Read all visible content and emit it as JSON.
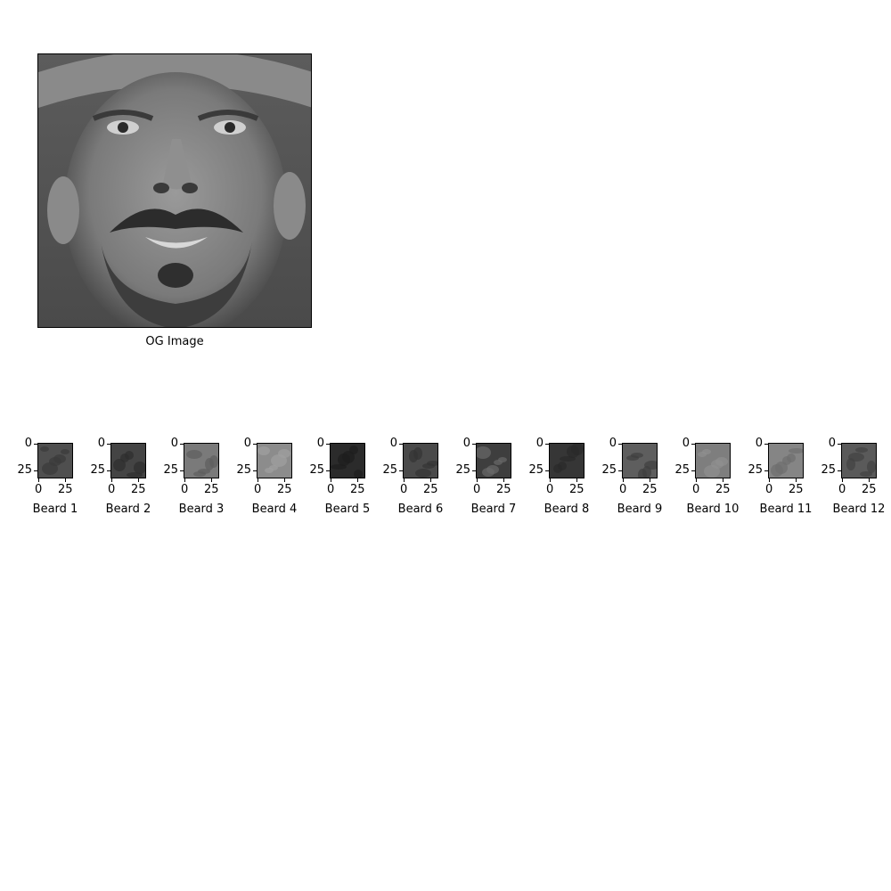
{
  "main_image": {
    "caption": "OG Image"
  },
  "patches": {
    "tick_labels": {
      "x": [
        "0",
        "25"
      ],
      "y": [
        "0",
        "25"
      ]
    },
    "items": [
      {
        "caption": "Beard 1",
        "shade": "#4f4f4f",
        "texture": "#3a3a3a"
      },
      {
        "caption": "Beard 2",
        "shade": "#444444",
        "texture": "#2e2e2e"
      },
      {
        "caption": "Beard 3",
        "shade": "#7a7a7a",
        "texture": "#5e5e5e"
      },
      {
        "caption": "Beard 4",
        "shade": "#8c8c8c",
        "texture": "#a0a0a0"
      },
      {
        "caption": "Beard 5",
        "shade": "#2b2b2b",
        "texture": "#1e1e1e"
      },
      {
        "caption": "Beard 6",
        "shade": "#4a4a4a",
        "texture": "#333333"
      },
      {
        "caption": "Beard 7",
        "shade": "#3e3e3e",
        "texture": "#6a6a6a"
      },
      {
        "caption": "Beard 8",
        "shade": "#363636",
        "texture": "#2a2a2a"
      },
      {
        "caption": "Beard 9",
        "shade": "#5e5e5e",
        "texture": "#3f3f3f"
      },
      {
        "caption": "Beard 10",
        "shade": "#7e7e7e",
        "texture": "#909090"
      },
      {
        "caption": "Beard 11",
        "shade": "#858585",
        "texture": "#6d6d6d"
      },
      {
        "caption": "Beard 12",
        "shade": "#5a5a5a",
        "texture": "#424242"
      }
    ]
  }
}
